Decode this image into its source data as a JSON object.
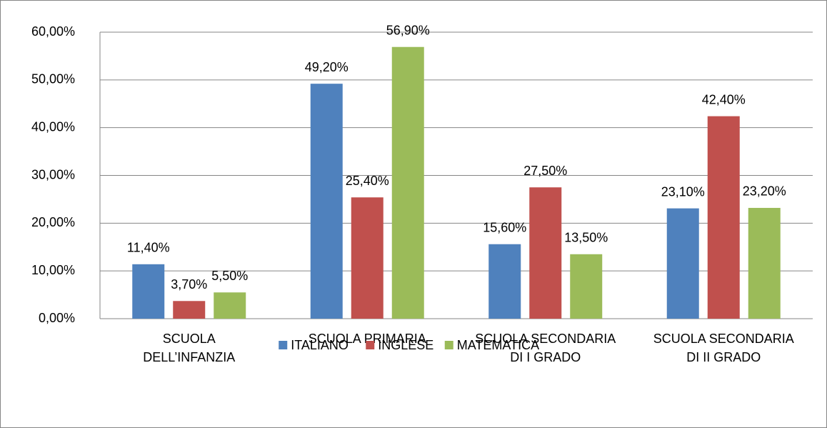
{
  "chart_data": {
    "type": "bar",
    "categories": [
      "SCUOLA\nDELL’INFANZIA",
      "SCUOLA PRIMARIA",
      "SCUOLA SECONDARIA\nDI I GRADO",
      "SCUOLA SECONDARIA\nDI II GRADO"
    ],
    "series": [
      {
        "name": "ITALIANO",
        "color": "#4f81bd",
        "values": [
          11.4,
          49.2,
          15.6,
          23.1
        ],
        "value_labels": [
          "11,40%",
          "49,20%",
          "15,60%",
          "23,10%"
        ]
      },
      {
        "name": "INGLESE",
        "color": "#c0504d",
        "values": [
          3.7,
          25.4,
          27.5,
          42.4
        ],
        "value_labels": [
          "3,70%",
          "25,40%",
          "27,50%",
          "42,40%"
        ]
      },
      {
        "name": "MATEMATICA",
        "color": "#9bbb59",
        "values": [
          5.5,
          56.9,
          13.5,
          23.2
        ],
        "value_labels": [
          "5,50%",
          "56,90%",
          "13,50%",
          "23,20%"
        ]
      }
    ],
    "ylim": [
      0,
      60
    ],
    "yticks": [
      {
        "value": 0,
        "label": "0,00%"
      },
      {
        "value": 10,
        "label": "10,00%"
      },
      {
        "value": 20,
        "label": "20,00%"
      },
      {
        "value": 30,
        "label": "30,00%"
      },
      {
        "value": 40,
        "label": "40,00%"
      },
      {
        "value": 50,
        "label": "50,00%"
      },
      {
        "value": 60,
        "label": "60,00%"
      }
    ],
    "grid": true,
    "legend": "bottom"
  }
}
